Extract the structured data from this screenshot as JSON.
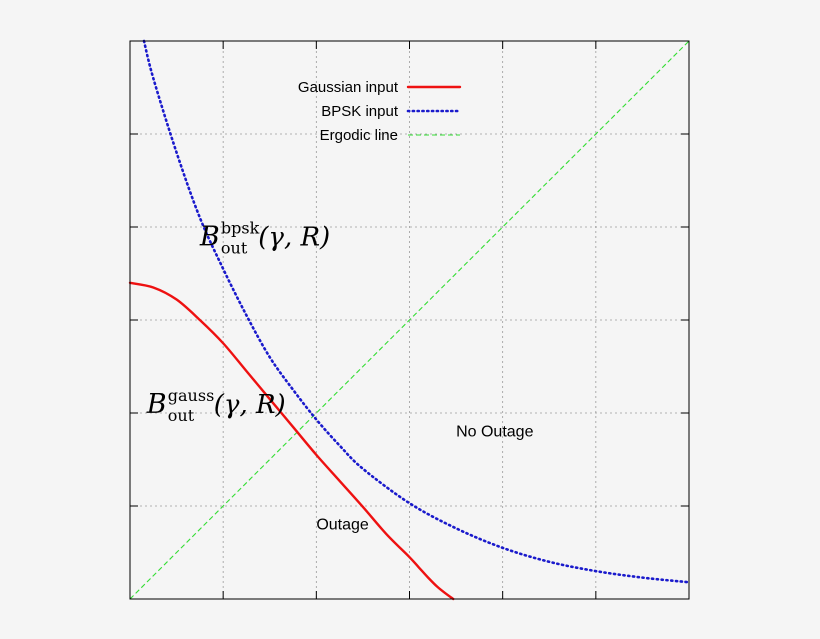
{
  "chart_data": {
    "type": "line",
    "title": "",
    "xlabel": "",
    "ylabel": "",
    "xlim": [
      0,
      6
    ],
    "ylim": [
      0,
      6
    ],
    "grid": true,
    "legend_position": "top-center",
    "series": [
      {
        "name": "Gaussian input",
        "color": "#ee1111",
        "style": "solid",
        "x": [
          0,
          0.25,
          0.5,
          0.75,
          1.0,
          1.25,
          1.5,
          1.75,
          2.0,
          2.25,
          2.5,
          2.75,
          3.0,
          3.1,
          3.2,
          3.3,
          3.4,
          3.45,
          3.47
        ],
        "y": [
          3.4,
          3.35,
          3.22,
          3.0,
          2.75,
          2.45,
          2.15,
          1.85,
          1.55,
          1.27,
          0.99,
          0.7,
          0.45,
          0.34,
          0.23,
          0.13,
          0.05,
          0.015,
          0
        ]
      },
      {
        "name": "BPSK input",
        "color": "#1a1acc",
        "style": "dotted",
        "x": [
          0.15,
          0.25,
          0.5,
          0.75,
          1.0,
          1.25,
          1.5,
          1.75,
          2.0,
          2.25,
          2.5,
          3.0,
          3.5,
          4.0,
          4.5,
          5.0,
          5.5,
          6.0
        ],
        "y": [
          6.0,
          5.6,
          4.8,
          4.1,
          3.55,
          3.05,
          2.6,
          2.25,
          1.93,
          1.65,
          1.4,
          1.03,
          0.76,
          0.55,
          0.4,
          0.3,
          0.23,
          0.18
        ]
      },
      {
        "name": "Ergodic line",
        "color": "#33dd33",
        "style": "dashed",
        "x": [
          0,
          6
        ],
        "y": [
          0,
          6
        ]
      }
    ],
    "annotations": [
      {
        "id": "bpsk",
        "script": "B",
        "sup": "bpsk",
        "sub": "out",
        "args": "(γ, R)",
        "x": 0.75,
        "y": 3.8
      },
      {
        "id": "gauss",
        "script": "B",
        "sup": "gauss",
        "sub": "out",
        "args": "(γ, R)",
        "x": 0.18,
        "y": 2.0
      },
      {
        "id": "outage",
        "text": "Outage",
        "x": 2.0,
        "y": 0.75
      },
      {
        "id": "no-outage",
        "text": "No Outage",
        "x": 3.5,
        "y": 1.75
      }
    ]
  }
}
